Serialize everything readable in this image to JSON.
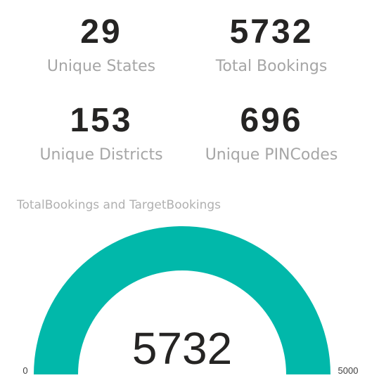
{
  "kpis": [
    {
      "value": "29",
      "label": "Unique States"
    },
    {
      "value": "5732",
      "label": "Total Bookings"
    },
    {
      "value": "153",
      "label": "Unique Districts"
    },
    {
      "value": "696",
      "label": "Unique PINCodes"
    }
  ],
  "gauge": {
    "title": "TotalBookings and TargetBookings",
    "value": 5732,
    "value_label": "5732",
    "min": 0,
    "max": 5000,
    "min_label": "0",
    "max_label": "5000",
    "fill_color": "#01b8aa"
  }
}
